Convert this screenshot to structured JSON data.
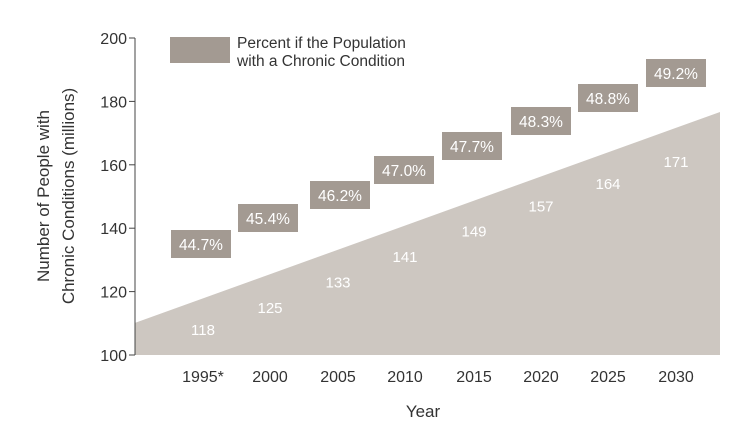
{
  "colors": {
    "area": "#cdc7c1",
    "box": "#a39a92",
    "axis": "#444444",
    "text": "#333333",
    "label": "#ffffff"
  },
  "chart_data": {
    "type": "area",
    "categories": [
      "1995*",
      "2000",
      "2005",
      "2010",
      "2015",
      "2020",
      "2025",
      "2030"
    ],
    "series": [
      {
        "values": [
          118,
          125,
          133,
          141,
          149,
          157,
          164,
          171
        ]
      },
      {
        "name": "Percent if the Population with a Chronic Condition",
        "values": [
          44.7,
          45.4,
          46.2,
          47.0,
          47.7,
          48.3,
          48.8,
          49.2
        ],
        "labels": [
          "44.7%",
          "45.4%",
          "46.2%",
          "47.0%",
          "47.7%",
          "48.3%",
          "48.8%",
          "49.2%"
        ]
      }
    ],
    "legend_lines": [
      "Percent if the Population",
      "with a Chronic Condition"
    ],
    "xlabel": "Year",
    "ylabel_lines": [
      "Number of People with",
      "Chronic Conditions (millions)"
    ],
    "ylim": [
      100,
      200
    ],
    "yticks": [
      "100",
      "120",
      "140",
      "160",
      "180",
      "200"
    ],
    "grid": false,
    "legend_position": "top-left"
  }
}
